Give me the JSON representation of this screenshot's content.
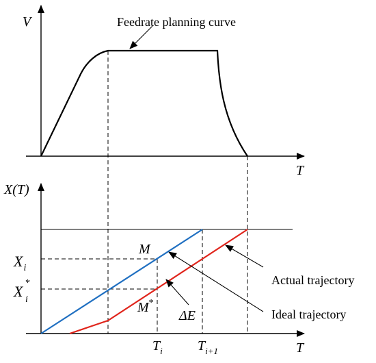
{
  "labels": {
    "v_axis": "V",
    "t_axis_top": "T",
    "x_axis": "X(T)",
    "t_axis_bottom": "T",
    "feedrate_curve": "Feedrate planning curve",
    "actual_trajectory": "Actual trajectory",
    "ideal_trajectory": "Ideal trajectory",
    "point_m": "M",
    "point_m_star_base": "M",
    "point_m_star_sup": "*",
    "x_i_base": "X",
    "x_i_sub": "i",
    "x_i_star_base": "X",
    "x_i_star_sup": "*",
    "x_i_star_sub": "i",
    "t_i_base": "T",
    "t_i_sub": "i",
    "t_i1_base": "T",
    "t_i1_sub": "i+1",
    "delta_e": "ΔE"
  },
  "colors": {
    "ideal_line": "#1f6fc1",
    "actual_line": "#e0241b",
    "axis": "#000000"
  }
}
